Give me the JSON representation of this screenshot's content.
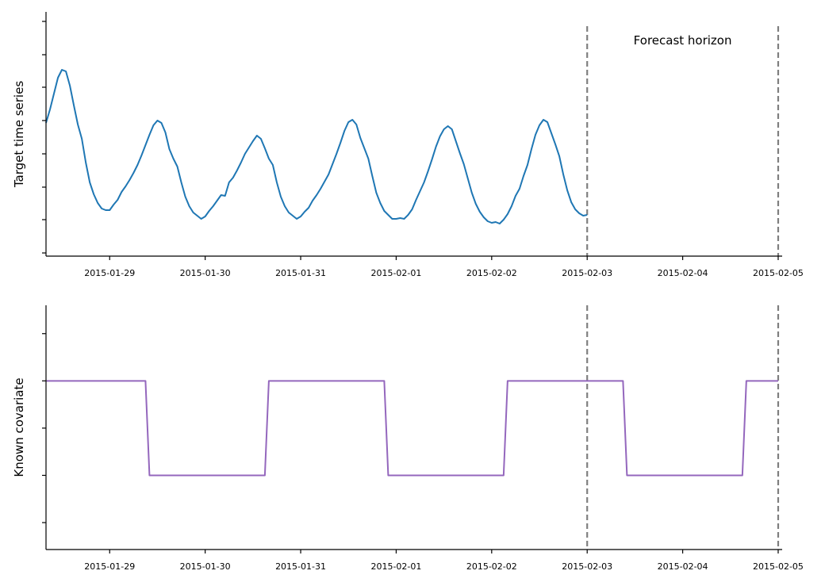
{
  "chart_data": [
    {
      "type": "line",
      "ylabel": "Target time series",
      "x": [
        8,
        9,
        10,
        11,
        12,
        13,
        14,
        15,
        16,
        17,
        18,
        19,
        20,
        21,
        22,
        23,
        24,
        25,
        26,
        27,
        28,
        29,
        30,
        31,
        32,
        33,
        34,
        35,
        36,
        37,
        38,
        39,
        40,
        41,
        42,
        43,
        44,
        45,
        46,
        47,
        48,
        49,
        50,
        51,
        52,
        53,
        54,
        55,
        56,
        57,
        58,
        59,
        60,
        61,
        62,
        63,
        64,
        65,
        66,
        67,
        68,
        69,
        70,
        71,
        72,
        73,
        74,
        75,
        76,
        77,
        78,
        79,
        80,
        81,
        82,
        83,
        84,
        85,
        86,
        87,
        88,
        89,
        90,
        91,
        92,
        93,
        94,
        95,
        96,
        97,
        98,
        99,
        100,
        101,
        102,
        103,
        104,
        105,
        106,
        107,
        108,
        109,
        110,
        111,
        112,
        113,
        114,
        115,
        116,
        117,
        118,
        119,
        120,
        121,
        122,
        123,
        124,
        125,
        126,
        127,
        128,
        129,
        130,
        131,
        132,
        133,
        134,
        135,
        136,
        137,
        138,
        139,
        140,
        141,
        142,
        143,
        144
      ],
      "series": [
        {
          "color": "#1f77b4",
          "values": [
            164,
            181,
            201,
            221,
            231,
            229,
            211,
            186,
            162,
            144,
            114,
            89,
            74,
            63,
            56,
            54,
            54,
            61,
            67,
            77,
            84,
            92,
            101,
            111,
            123,
            136,
            149,
            161,
            167,
            164,
            152,
            131,
            119,
            109,
            89,
            71,
            59,
            51,
            47,
            43,
            46,
            53,
            59,
            66,
            73,
            72,
            89,
            95,
            104,
            114,
            125,
            133,
            141,
            148,
            144,
            132,
            119,
            111,
            89,
            71,
            59,
            51,
            47,
            43,
            46,
            52,
            57,
            66,
            73,
            81,
            90,
            99,
            112,
            125,
            139,
            154,
            165,
            168,
            162,
            145,
            132,
            119,
            97,
            76,
            63,
            53,
            48,
            43,
            43,
            44,
            43,
            48,
            55,
            67,
            78,
            89,
            103,
            118,
            134,
            147,
            156,
            160,
            156,
            141,
            126,
            112,
            94,
            76,
            62,
            52,
            45,
            40,
            38,
            39,
            37,
            42,
            49,
            59,
            72,
            81,
            97,
            111,
            131,
            149,
            161,
            168,
            165,
            151,
            137,
            122,
            99,
            79,
            64,
            55,
            50,
            47,
            48
          ]
        }
      ],
      "xlim": [
        8,
        193
      ],
      "xticks": [
        {
          "value": 24,
          "label": "2015-01-29"
        },
        {
          "value": 48,
          "label": "2015-01-30"
        },
        {
          "value": 72,
          "label": "2015-01-31"
        },
        {
          "value": 96,
          "label": "2015-02-01"
        },
        {
          "value": 120,
          "label": "2015-02-02"
        },
        {
          "value": 144,
          "label": "2015-02-03"
        },
        {
          "value": 168,
          "label": "2015-02-04"
        },
        {
          "value": 192,
          "label": "2015-02-05"
        }
      ],
      "ylim": [
        -4,
        304
      ],
      "yticks": [
        0,
        42,
        83,
        125,
        167,
        209,
        250,
        292
      ],
      "ytick_labels": false,
      "vlines": [
        144,
        192
      ],
      "vline_color": "#7f7f7f",
      "annotations": [
        {
          "text": "Forecast horizon",
          "x": 168
        }
      ]
    },
    {
      "type": "line",
      "ylabel": "Known covariate",
      "x": [
        8,
        33,
        34,
        63,
        64,
        93,
        94,
        123,
        124,
        153,
        154,
        183,
        184,
        192
      ],
      "series": [
        {
          "color": "#9467bd",
          "values": [
            3,
            3,
            1,
            1,
            3,
            3,
            1,
            1,
            3,
            3,
            1,
            1,
            3,
            3
          ]
        }
      ],
      "xlim": [
        8,
        193
      ],
      "xticks": [
        {
          "value": 24,
          "label": "2015-01-29"
        },
        {
          "value": 48,
          "label": "2015-01-30"
        },
        {
          "value": 72,
          "label": "2015-01-31"
        },
        {
          "value": 96,
          "label": "2015-02-01"
        },
        {
          "value": 120,
          "label": "2015-02-02"
        },
        {
          "value": 144,
          "label": "2015-02-03"
        },
        {
          "value": 168,
          "label": "2015-02-04"
        },
        {
          "value": 192,
          "label": "2015-02-05"
        }
      ],
      "ylim": [
        -0.57,
        4.6
      ],
      "yticks": [
        0,
        1,
        2,
        3,
        4
      ],
      "ytick_labels": false,
      "vlines": [
        144,
        192
      ],
      "vline_color": "#7f7f7f"
    }
  ]
}
